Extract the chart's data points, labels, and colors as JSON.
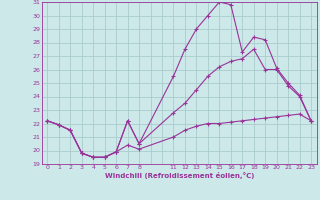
{
  "xlabel": "Windchill (Refroidissement éolien,°C)",
  "bg_color": "#cce8e8",
  "line_color": "#993399",
  "grid_color": "#aacccc",
  "ylim": [
    19,
    31
  ],
  "tick_labels": [
    "0",
    "1",
    "2",
    "3",
    "4",
    "5",
    "6",
    "7",
    "8",
    "",
    "",
    "11",
    "12",
    "13",
    "14",
    "15",
    "16",
    "17",
    "18",
    "19",
    "20",
    "21",
    "22",
    "23"
  ],
  "line1_x": [
    0,
    1,
    2,
    3,
    4,
    5,
    6,
    7,
    8,
    11,
    12,
    13,
    14,
    15,
    16,
    17,
    18,
    19,
    20,
    21,
    22,
    23
  ],
  "line1_y": [
    22.2,
    21.9,
    21.5,
    19.8,
    19.5,
    19.5,
    19.9,
    20.4,
    20.1,
    21.0,
    21.5,
    21.8,
    22.0,
    22.0,
    22.1,
    22.2,
    22.3,
    22.4,
    22.5,
    22.6,
    22.7,
    22.2
  ],
  "line2_x": [
    0,
    1,
    2,
    3,
    4,
    5,
    6,
    7,
    8,
    11,
    12,
    13,
    14,
    15,
    16,
    17,
    18,
    19,
    20,
    21,
    22,
    23
  ],
  "line2_y": [
    22.2,
    21.9,
    21.5,
    19.8,
    19.5,
    19.5,
    19.9,
    22.2,
    20.5,
    22.8,
    23.5,
    24.5,
    25.5,
    26.2,
    26.6,
    26.8,
    27.5,
    26.0,
    26.0,
    24.8,
    24.0,
    22.2
  ],
  "line3_x": [
    0,
    1,
    2,
    3,
    4,
    5,
    6,
    7,
    8,
    11,
    12,
    13,
    14,
    15,
    16,
    17,
    18,
    19,
    20,
    21,
    22,
    23
  ],
  "line3_y": [
    22.2,
    21.9,
    21.5,
    19.8,
    19.5,
    19.5,
    19.9,
    22.2,
    20.5,
    25.5,
    27.5,
    29.0,
    30.0,
    31.0,
    30.8,
    27.3,
    28.4,
    28.2,
    26.1,
    25.0,
    24.1,
    22.2
  ]
}
